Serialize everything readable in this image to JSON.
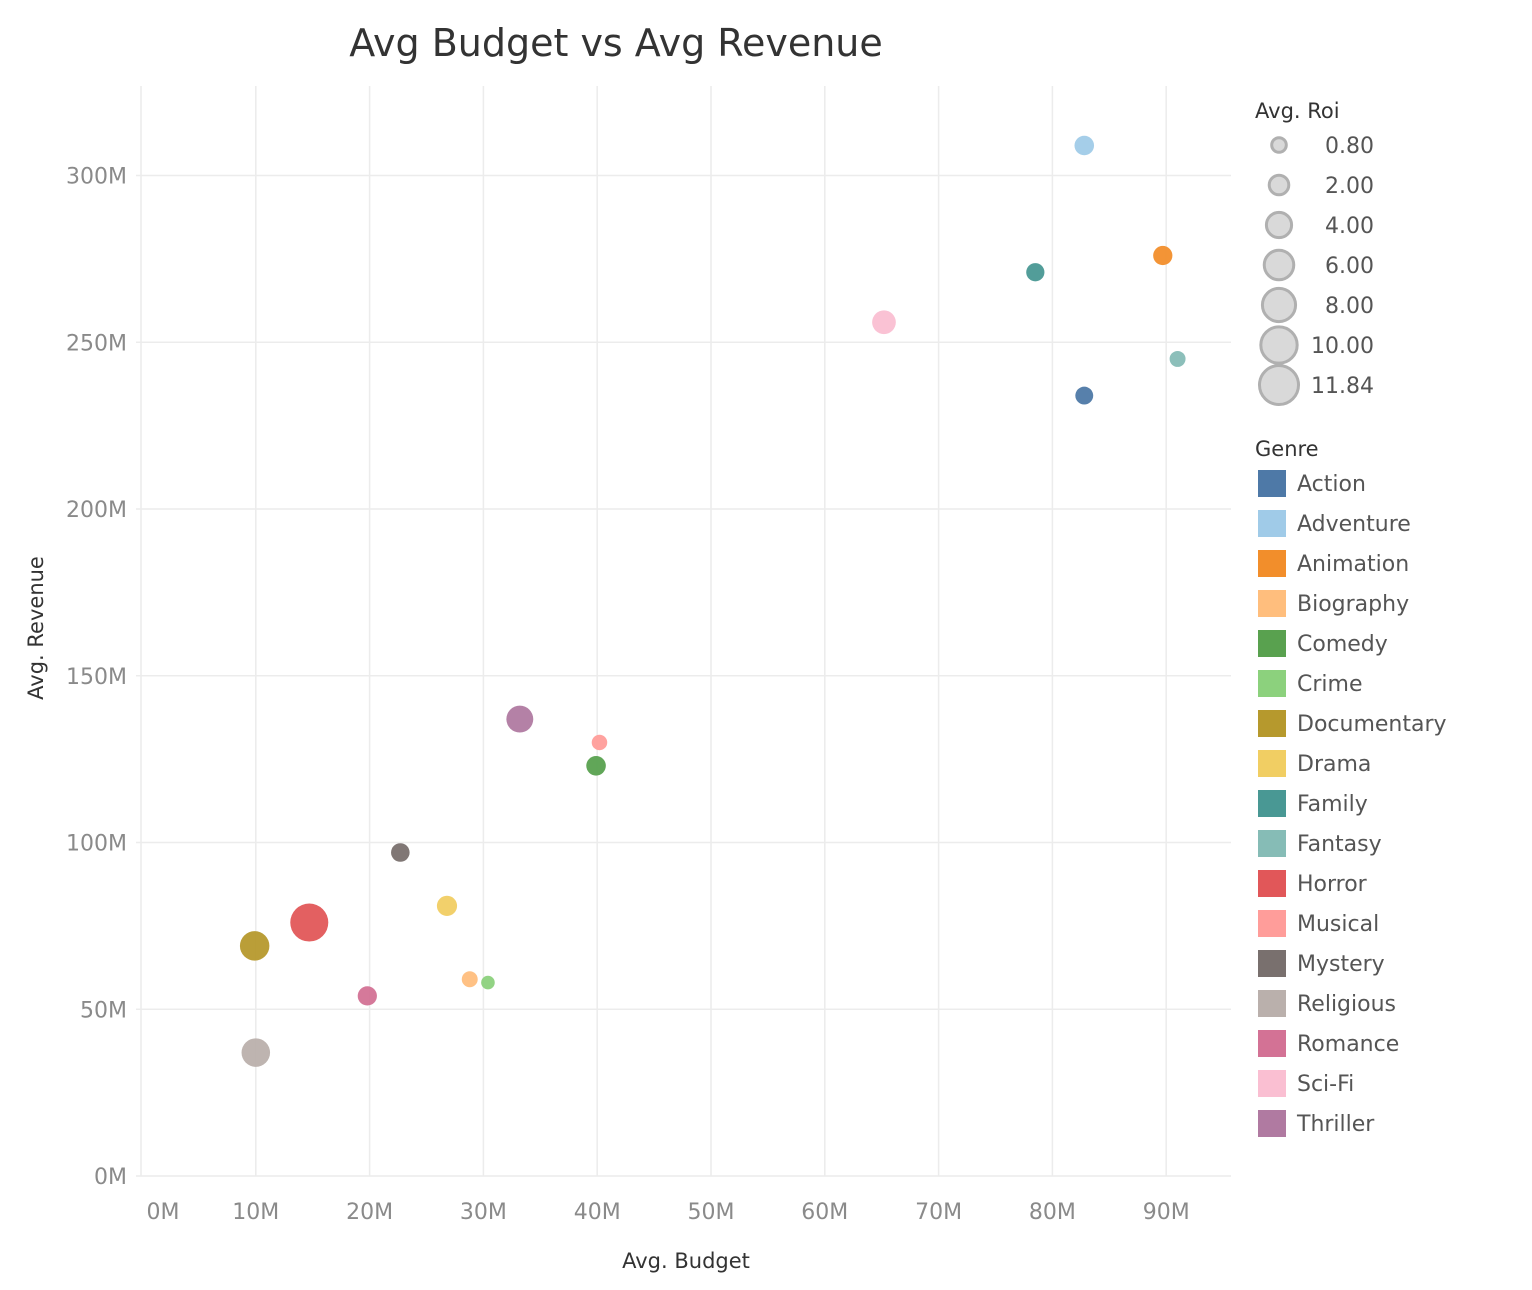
{
  "chart_data": {
    "type": "scatter",
    "title": "Avg Budget vs Avg Revenue",
    "xlabel": "Avg. Budget",
    "ylabel": "Avg. Revenue",
    "xlim": [
      0,
      95
    ],
    "ylim": [
      0,
      325
    ],
    "x_ticks": [
      0,
      10,
      20,
      30,
      40,
      50,
      60,
      70,
      80,
      90
    ],
    "x_tick_labels": [
      "0M",
      "10M",
      "20M",
      "30M",
      "40M",
      "50M",
      "60M",
      "70M",
      "80M",
      "90M"
    ],
    "y_ticks": [
      0,
      50,
      100,
      150,
      200,
      250,
      300
    ],
    "y_tick_labels": [
      "0M",
      "50M",
      "100M",
      "150M",
      "200M",
      "250M",
      "300M"
    ],
    "unit": "M",
    "grid": true,
    "size_legend": {
      "title": "Avg. Roi",
      "values": [
        0.8,
        2.0,
        4.0,
        6.0,
        8.0,
        10.0,
        11.84
      ],
      "labels": [
        "0.80",
        "2.00",
        "4.00",
        "6.00",
        "8.00",
        "10.00",
        "11.84"
      ]
    },
    "color_legend": {
      "title": "Genre",
      "placement": "right"
    },
    "points": [
      {
        "genre": "Action",
        "x": 82.8,
        "y": 234,
        "roi": 1.8,
        "color": "#4e79a7"
      },
      {
        "genre": "Adventure",
        "x": 82.8,
        "y": 309,
        "roi": 2.3,
        "color": "#a0cbe8"
      },
      {
        "genre": "Animation",
        "x": 89.7,
        "y": 276,
        "roi": 2.2,
        "color": "#f28e2b"
      },
      {
        "genre": "Biography",
        "x": 28.8,
        "y": 59,
        "roi": 1.3,
        "color": "#ffbe7d"
      },
      {
        "genre": "Comedy",
        "x": 39.9,
        "y": 123,
        "roi": 2.3,
        "color": "#59a14f"
      },
      {
        "genre": "Crime",
        "x": 30.4,
        "y": 58,
        "roi": 0.8,
        "color": "#8cd17d"
      },
      {
        "genre": "Documentary",
        "x": 9.9,
        "y": 69,
        "roi": 6.5,
        "color": "#b6992d"
      },
      {
        "genre": "Drama",
        "x": 26.8,
        "y": 81,
        "roi": 2.5,
        "color": "#f1ce63"
      },
      {
        "genre": "Family",
        "x": 78.5,
        "y": 271,
        "roi": 1.9,
        "color": "#499894"
      },
      {
        "genre": "Fantasy",
        "x": 91.0,
        "y": 245,
        "roi": 1.3,
        "color": "#86bcb6"
      },
      {
        "genre": "Horror",
        "x": 14.7,
        "y": 76,
        "roi": 11.84,
        "color": "#e15759"
      },
      {
        "genre": "Musical",
        "x": 40.2,
        "y": 130,
        "roi": 1.2,
        "color": "#ff9d9a"
      },
      {
        "genre": "Mystery",
        "x": 22.7,
        "y": 97,
        "roi": 2.0,
        "color": "#79706e"
      },
      {
        "genre": "Religious",
        "x": 10.0,
        "y": 37,
        "roi": 6.0,
        "color": "#bab0ac"
      },
      {
        "genre": "Romance",
        "x": 19.8,
        "y": 54,
        "roi": 2.2,
        "color": "#d37295"
      },
      {
        "genre": "Sci-Fi",
        "x": 65.2,
        "y": 256,
        "roi": 3.8,
        "color": "#fabfd2"
      },
      {
        "genre": "Thriller",
        "x": 33.2,
        "y": 137,
        "roi": 5.2,
        "color": "#b07aa1"
      }
    ]
  }
}
